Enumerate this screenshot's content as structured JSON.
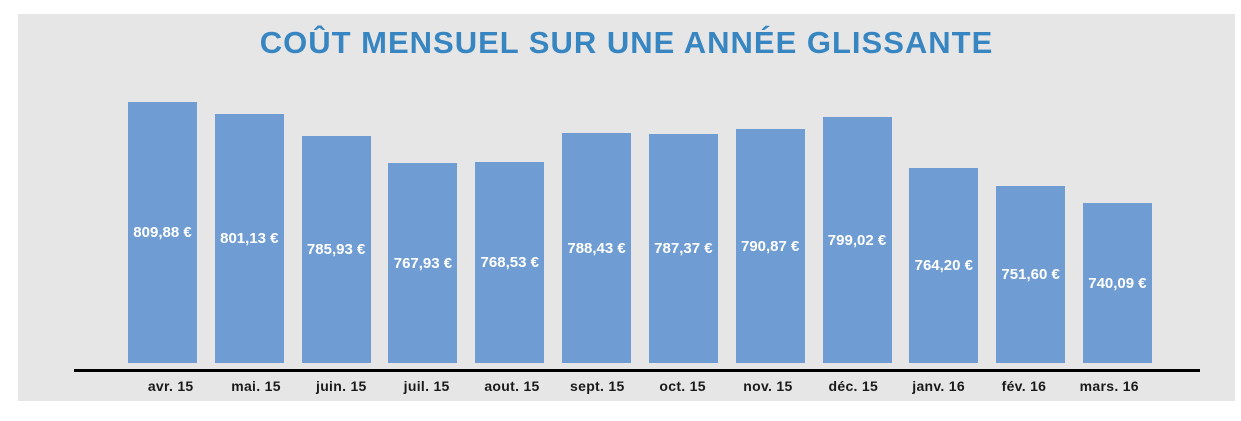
{
  "chart_data": {
    "type": "bar",
    "title": "COÛT MENSUEL SUR UNE ANNÉE GLISSANTE",
    "categories": [
      "avr. 15",
      "mai. 15",
      "juin. 15",
      "juil. 15",
      "aout. 15",
      "sept. 15",
      "oct. 15",
      "nov. 15",
      "déc. 15",
      "janv. 16",
      "fév. 16",
      "mars. 16"
    ],
    "values": [
      809.88,
      801.13,
      785.93,
      767.93,
      768.53,
      788.43,
      787.37,
      790.87,
      799.02,
      764.2,
      751.6,
      740.09
    ],
    "value_labels": [
      "809,88 €",
      "801,13 €",
      "785,93 €",
      "767,93 €",
      "768,53 €",
      "788,43 €",
      "787,37 €",
      "790,87 €",
      "799,02 €",
      "764,20 €",
      "751,60 €",
      "740,09 €"
    ],
    "unit": "€",
    "xlabel": "",
    "ylabel": "",
    "ylim": [
      630,
      820
    ],
    "grid": false,
    "legend": false,
    "colors": {
      "bar_color": "#6f9cd2",
      "title_color": "#3786c2",
      "panel_bg": "#e6e6e6",
      "axis_color": "#000000",
      "bar_label_color": "#ffffff",
      "x_label_color": "#1a1a1a"
    }
  }
}
